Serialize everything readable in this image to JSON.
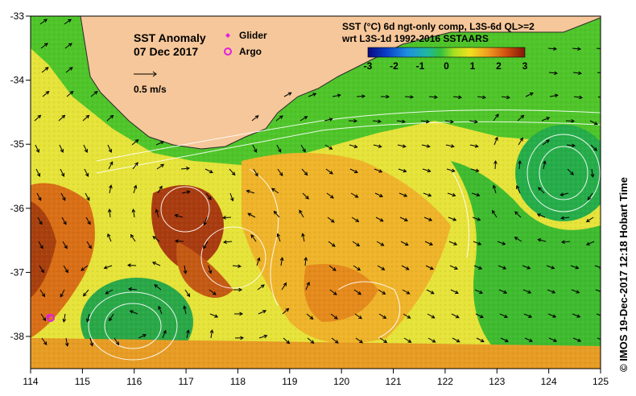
{
  "map": {
    "title": "SST Anomaly",
    "date": "07 Dec 2017",
    "vector_scale_label": "0.5 m/s",
    "glider_label": "Glider",
    "argo_label": "Argo",
    "product_line1": "SST (°C) 6d ngt-only comp, L3S-6d QL>=2",
    "product_line2": "wrt L3S-1d 1992-2016 SSTAARS",
    "credit": "© IMOS 19-Dec-2017 12:18 Hobart Time",
    "colorbar_ticks": [
      "-3",
      "-2",
      "-1",
      "0",
      "1",
      "2",
      "3"
    ],
    "x_ticks": [
      "114",
      "115",
      "116",
      "117",
      "118",
      "119",
      "120",
      "121",
      "122",
      "123",
      "124",
      "125"
    ],
    "y_ticks": [
      "-33",
      "-34",
      "-35",
      "-36",
      "-37",
      "-38"
    ],
    "colors": {
      "land": "#f6c79a",
      "warm": "#e07a18",
      "hot": "#8b2a0c",
      "neutral": "#e8ea2a",
      "cool": "#5cd02a",
      "cold": "#21a84c",
      "contour": "#ffffff",
      "glider": "#e020e0",
      "argo": "#e020e0"
    }
  }
}
